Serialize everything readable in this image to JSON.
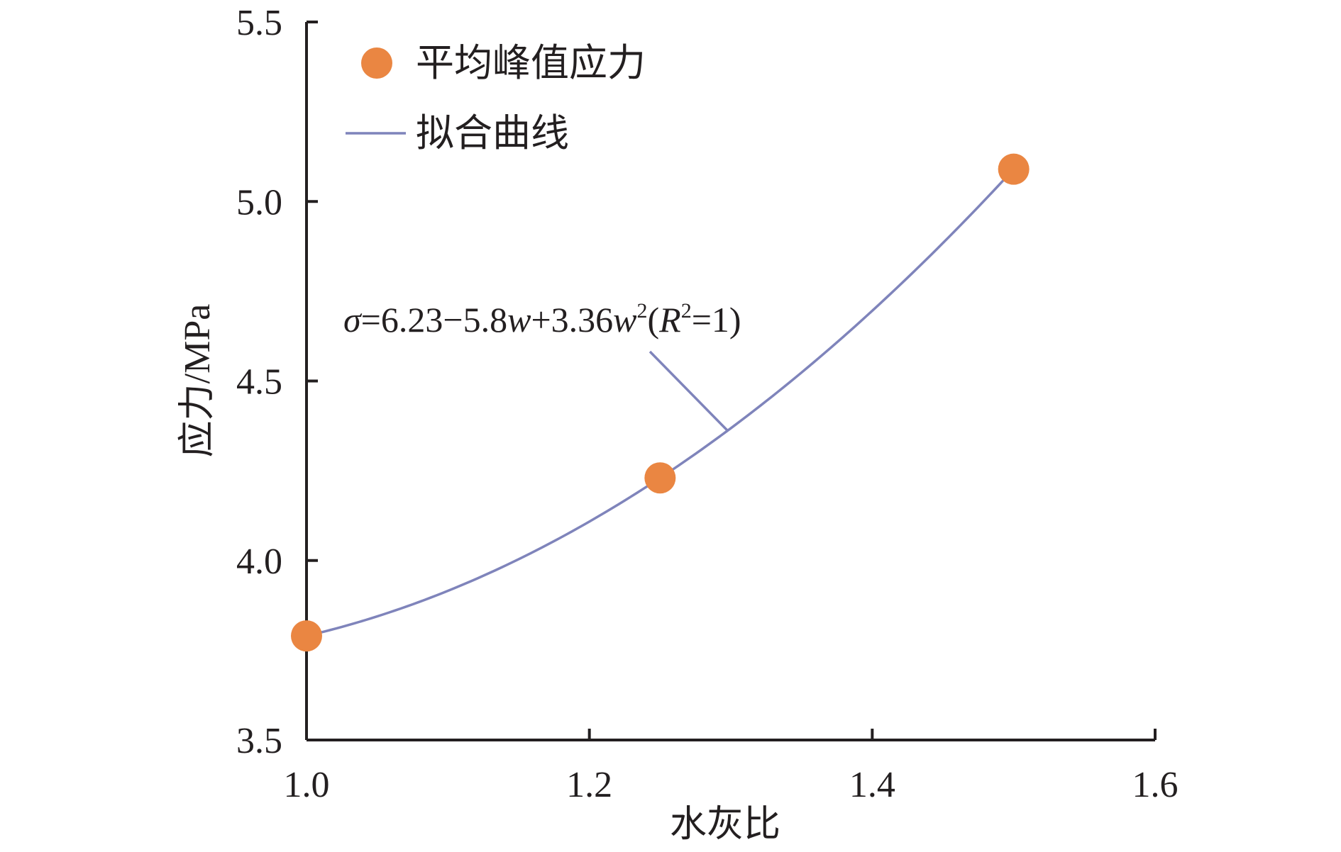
{
  "chart_data": {
    "type": "scatter",
    "title": "",
    "xlabel": "水灰比",
    "ylabel": "应力/MPa",
    "xlim": [
      1.0,
      1.6
    ],
    "ylim": [
      3.5,
      5.5
    ],
    "xticks": [
      1.0,
      1.2,
      1.4,
      1.6
    ],
    "yticks": [
      3.5,
      4.0,
      4.5,
      5.0,
      5.5
    ],
    "x_tick_labels": [
      "1.0",
      "1.2",
      "1.4",
      "1.6"
    ],
    "y_tick_labels": [
      "3.5",
      "4.0",
      "4.5",
      "5.0",
      "5.5"
    ],
    "grid": false,
    "legend_position": "top-left",
    "series": [
      {
        "name": "平均峰值应力",
        "kind": "scatter",
        "color": "#ea8642",
        "x": [
          1.0,
          1.25,
          1.5
        ],
        "y": [
          3.79,
          4.23,
          5.09
        ]
      },
      {
        "name": "拟合曲线",
        "kind": "line",
        "color": "#7f84bb",
        "x_range": [
          1.0,
          1.5
        ],
        "coefficients": {
          "a": 6.23,
          "b": -5.8,
          "c": 3.36
        }
      }
    ],
    "annotation": {
      "parts": [
        {
          "text": "σ",
          "italic": true,
          "sup": false
        },
        {
          "text": "=6.23−5.8",
          "italic": false,
          "sup": false
        },
        {
          "text": "w",
          "italic": true,
          "sup": false
        },
        {
          "text": "+3.36",
          "italic": false,
          "sup": false
        },
        {
          "text": "w",
          "italic": true,
          "sup": false
        },
        {
          "text": "2",
          "italic": false,
          "sup": true
        },
        {
          "text": "(",
          "italic": false,
          "sup": false
        },
        {
          "text": "R",
          "italic": true,
          "sup": false
        },
        {
          "text": "2",
          "italic": false,
          "sup": true
        },
        {
          "text": "=1)",
          "italic": false,
          "sup": false
        }
      ],
      "points_to_x": 1.3
    }
  }
}
